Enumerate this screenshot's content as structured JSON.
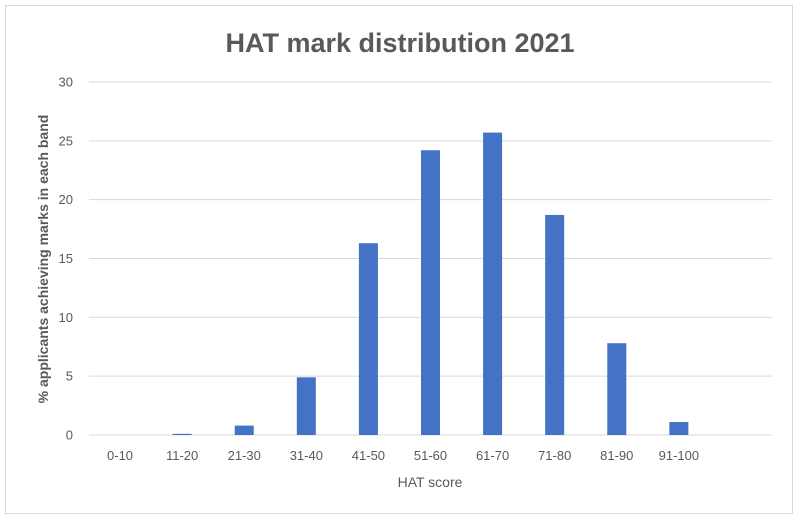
{
  "chart_data": {
    "type": "bar",
    "title": "HAT mark distribution 2021",
    "xlabel": "HAT score",
    "ylabel": "% applicants achieving marks in each band",
    "categories": [
      "0-10",
      "11-20",
      "21-30",
      "31-40",
      "41-50",
      "51-60",
      "61-70",
      "71-80",
      "81-90",
      "91-100"
    ],
    "series": [
      {
        "values": [
          0,
          0.1,
          0.8,
          4.9,
          16.3,
          24.2,
          25.7,
          18.7,
          7.8,
          1.1
        ]
      }
    ],
    "ylim": [
      0,
      30
    ],
    "yticks": [
      0,
      5,
      10,
      15,
      20,
      25,
      30
    ],
    "grid": true,
    "legend": "none",
    "bar_color": "#4472c4",
    "grid_color": "#d9d9d9",
    "text_color": "#595959"
  }
}
